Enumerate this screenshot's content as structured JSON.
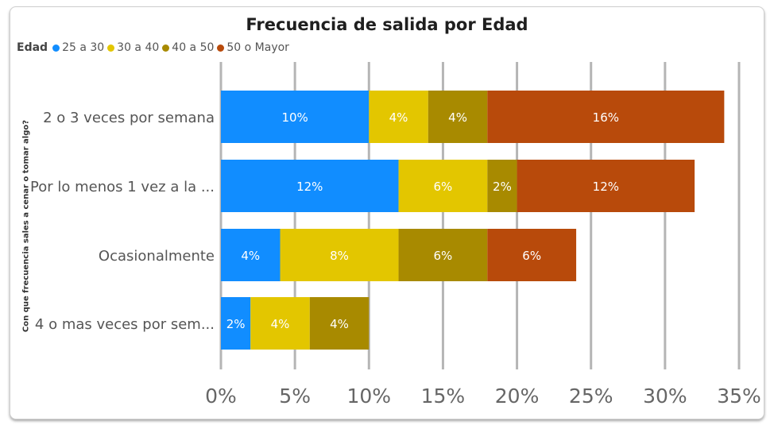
{
  "chart_data": {
    "type": "bar",
    "orientation": "horizontal",
    "stacked": true,
    "title": "Frecuencia de salida por Edad",
    "ylabel": "Con que frecuencia sales a cenar o tomar algo?",
    "xlabel": "",
    "legend_title": "Edad",
    "legend_position": "top-left",
    "grid": true,
    "xlim": [
      0,
      35
    ],
    "x_ticks": [
      "0%",
      "5%",
      "10%",
      "15%",
      "20%",
      "25%",
      "30%",
      "35%"
    ],
    "categories": [
      "2 o 3 veces por semana",
      "Por lo menos 1 vez a la ...",
      "Ocasionalmente",
      "4 o mas veces por sem..."
    ],
    "series": [
      {
        "name": "25 a 30",
        "color": "#118DFF",
        "values": [
          10,
          12,
          4,
          2
        ],
        "labels": [
          "10%",
          "12%",
          "4%",
          "2%"
        ]
      },
      {
        "name": "30 a 40",
        "color": "#E3C600",
        "values": [
          4,
          6,
          8,
          4
        ],
        "labels": [
          "4%",
          "6%",
          "8%",
          "4%"
        ]
      },
      {
        "name": "40 a 50",
        "color": "#A88A00",
        "values": [
          4,
          2,
          6,
          4
        ],
        "labels": [
          "4%",
          "2%",
          "6%",
          "4%"
        ]
      },
      {
        "name": "50 o Mayor",
        "color": "#B84A0B",
        "values": [
          16,
          12,
          6,
          0
        ],
        "labels": [
          "16%",
          "12%",
          "6%",
          ""
        ]
      }
    ]
  }
}
